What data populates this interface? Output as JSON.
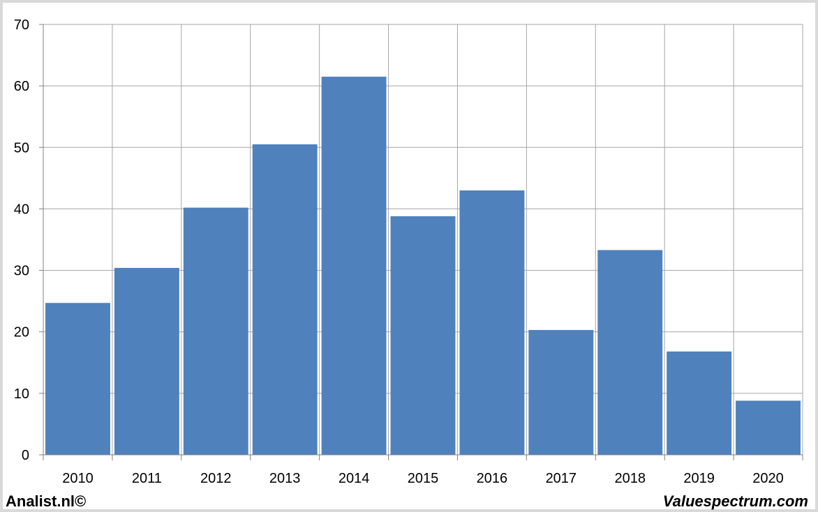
{
  "chart_data": {
    "type": "bar",
    "categories": [
      "2010",
      "2011",
      "2012",
      "2013",
      "2014",
      "2015",
      "2016",
      "2017",
      "2018",
      "2019",
      "2020"
    ],
    "values": [
      24.7,
      30.4,
      40.2,
      50.5,
      61.5,
      38.8,
      43.0,
      20.3,
      33.3,
      16.8,
      8.8
    ],
    "ylim": [
      0,
      70
    ],
    "yticks": [
      0,
      10,
      20,
      30,
      40,
      50,
      60,
      70
    ],
    "grid": true,
    "bar_color": "#4f81bd",
    "grid_color": "#a6a6a6"
  },
  "footer": {
    "left": "Analist.nl©",
    "right": "Valuespectrum.com"
  }
}
